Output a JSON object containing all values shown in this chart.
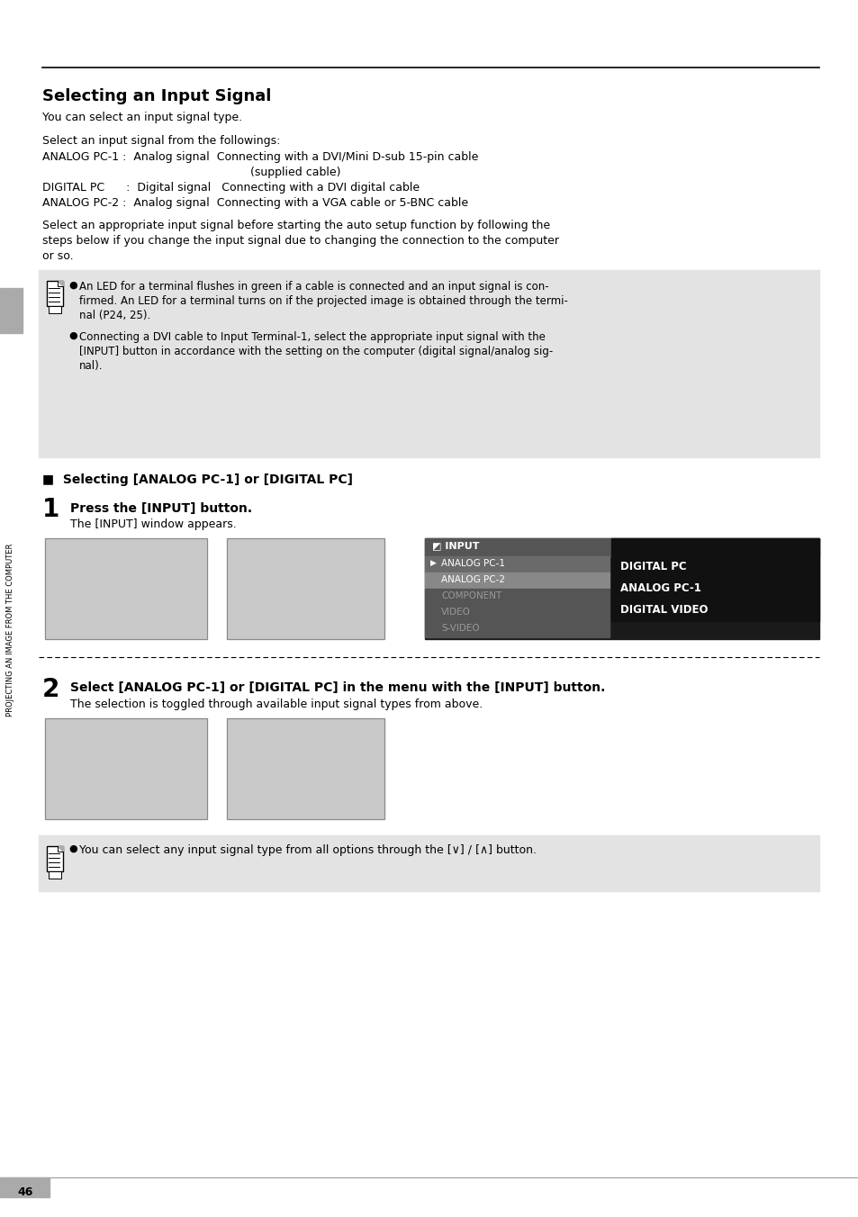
{
  "page_bg": "#ffffff",
  "page_num": "46",
  "title": "Selecting an Input Signal",
  "body_text_1": "You can select an input signal type.",
  "body_text_2": "Select an input signal from the followings:",
  "row1": "ANALOG PC-1 :  Analog signal  Connecting with a DVI/Mini D-sub 15-pin cable",
  "row1b": "(supplied cable)",
  "row2": "DIGITAL PC      :  Digital signal   Connecting with a DVI digital cable",
  "row3": "ANALOG PC-2 :  Analog signal  Connecting with a VGA cable or 5-BNC cable",
  "body_text_3a": "Select an appropriate input signal before starting the auto setup function by following the",
  "body_text_3b": "steps below if you change the input signal due to changing the connection to the computer",
  "body_text_3c": "or so.",
  "note_bg": "#e3e3e3",
  "note_bullet_1a": "An LED for a terminal flushes in green if a cable is connected and an input signal is con-",
  "note_bullet_1b": "firmed. An LED for a terminal turns on if the projected image is obtained through the termi-",
  "note_bullet_1c": "nal (P24, 25).",
  "note_bullet_2a": "Connecting a DVI cable to Input Terminal-1, select the appropriate input signal with the",
  "note_bullet_2b": "[INPUT] button in accordance with the setting on the computer (digital signal/analog sig-",
  "note_bullet_2c": "nal).",
  "section_heading": "■  Selecting [ANALOG PC-1] or [DIGITAL PC]",
  "step1_num": "1",
  "step1_bold": "Press the [INPUT] button.",
  "step1_body": "The [INPUT] window appears.",
  "step2_num": "2",
  "step2_bold": "Select [ANALOG PC-1] or [DIGITAL PC] in the menu with the [INPUT] button.",
  "step2_body": "The selection is toggled through available input signal types from above.",
  "note2_bullet": "You can select any input signal type from all options through the [∨] / [∧] button.",
  "sidebar_text": "PROJECTING AN IMAGE FROM THE COMPUTER",
  "menu_header": "◩ INPUT",
  "menu_items": [
    "ANALOG PC-1",
    "ANALOG PC-2",
    "COMPONENT",
    "VIDEO",
    "S-VIDEO"
  ],
  "menu_right": [
    "DIGITAL PC",
    "ANALOG PC-1",
    "DIGITAL VIDEO"
  ]
}
